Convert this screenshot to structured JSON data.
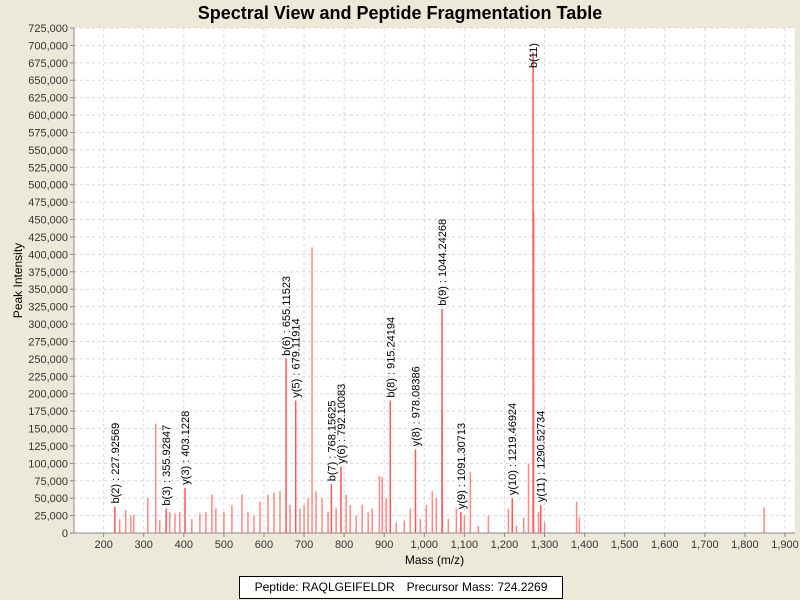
{
  "chart_data": {
    "type": "bar",
    "title": "Spectral View and Peptide Fragmentation Table",
    "xlabel": "Mass (m/z)",
    "ylabel": "Peak Intensity",
    "xlim": [
      126,
      1925
    ],
    "ylim": [
      0,
      725000
    ],
    "xticks": [
      200,
      300,
      400,
      500,
      600,
      700,
      800,
      900,
      1000,
      1100,
      1200,
      1300,
      1400,
      1500,
      1600,
      1700,
      1800,
      1900
    ],
    "ytick_step": 25000,
    "grid": true,
    "peak_color": "#ff5555",
    "annotated_peaks": [
      {
        "label": "b(2) : 227.92569",
        "mz": 227.93,
        "intensity": 38000
      },
      {
        "label": "b(3) : 355.92847",
        "mz": 355.93,
        "intensity": 35000
      },
      {
        "label": "y(3) : 403.1228",
        "mz": 403.12,
        "intensity": 65000
      },
      {
        "label": "b(6) : 655.11523",
        "mz": 655.12,
        "intensity": 250000
      },
      {
        "label": "y(5) : 679.11914",
        "mz": 679.12,
        "intensity": 190000
      },
      {
        "label": "b(7) : 768.15625",
        "mz": 768.16,
        "intensity": 70000
      },
      {
        "label": "y(6) : 792.10083",
        "mz": 792.1,
        "intensity": 95000
      },
      {
        "label": "b(8) : 915.24194",
        "mz": 915.24,
        "intensity": 190000
      },
      {
        "label": "y(8) : 978.08386",
        "mz": 978.08,
        "intensity": 120000
      },
      {
        "label": "b(9) : 1044.24268",
        "mz": 1044.24,
        "intensity": 322000
      },
      {
        "label": "y(9) : 1091.30713",
        "mz": 1091.31,
        "intensity": 30000
      },
      {
        "label": "y(10) : 1219.46924",
        "mz": 1219.47,
        "intensity": 50000
      },
      {
        "label": "y(11) : 1290.52734",
        "mz": 1290.53,
        "intensity": 40000
      },
      {
        "label": "b(11)",
        "mz": 1271.5,
        "intensity": 690000
      }
    ],
    "other_peaks": [
      [
        240,
        20000
      ],
      [
        255,
        33000
      ],
      [
        268,
        25000
      ],
      [
        275,
        26000
      ],
      [
        310,
        50000
      ],
      [
        330,
        157000
      ],
      [
        340,
        18000
      ],
      [
        365,
        30000
      ],
      [
        378,
        28000
      ],
      [
        390,
        30000
      ],
      [
        420,
        20000
      ],
      [
        440,
        28000
      ],
      [
        455,
        30000
      ],
      [
        470,
        55000
      ],
      [
        480,
        35000
      ],
      [
        500,
        30000
      ],
      [
        520,
        40000
      ],
      [
        545,
        55000
      ],
      [
        560,
        30000
      ],
      [
        575,
        25000
      ],
      [
        590,
        45000
      ],
      [
        610,
        55000
      ],
      [
        625,
        58000
      ],
      [
        640,
        60000
      ],
      [
        665,
        40000
      ],
      [
        690,
        35000
      ],
      [
        700,
        40000
      ],
      [
        710,
        50000
      ],
      [
        720,
        410000
      ],
      [
        730,
        60000
      ],
      [
        745,
        50000
      ],
      [
        760,
        30000
      ],
      [
        780,
        35000
      ],
      [
        805,
        55000
      ],
      [
        815,
        40000
      ],
      [
        830,
        25000
      ],
      [
        845,
        40000
      ],
      [
        860,
        30000
      ],
      [
        870,
        35000
      ],
      [
        888,
        82000
      ],
      [
        895,
        80000
      ],
      [
        905,
        50000
      ],
      [
        930,
        15000
      ],
      [
        950,
        18000
      ],
      [
        965,
        35000
      ],
      [
        990,
        20000
      ],
      [
        1005,
        40000
      ],
      [
        1020,
        60000
      ],
      [
        1030,
        50000
      ],
      [
        1045,
        175000
      ],
      [
        1060,
        20000
      ],
      [
        1080,
        35000
      ],
      [
        1100,
        25000
      ],
      [
        1115,
        88000
      ],
      [
        1135,
        10000
      ],
      [
        1160,
        25000
      ],
      [
        1210,
        35000
      ],
      [
        1230,
        10000
      ],
      [
        1248,
        22000
      ],
      [
        1260,
        100000
      ],
      [
        1273,
        460000
      ],
      [
        1285,
        30000
      ],
      [
        1300,
        15000
      ],
      [
        1380,
        45000
      ],
      [
        1387,
        22000
      ],
      [
        1848,
        37000
      ]
    ],
    "legend": {
      "peptide": "Peptide: RAQLGEIFELDR",
      "precursor": "Precursor Mass: 724.2269"
    }
  }
}
